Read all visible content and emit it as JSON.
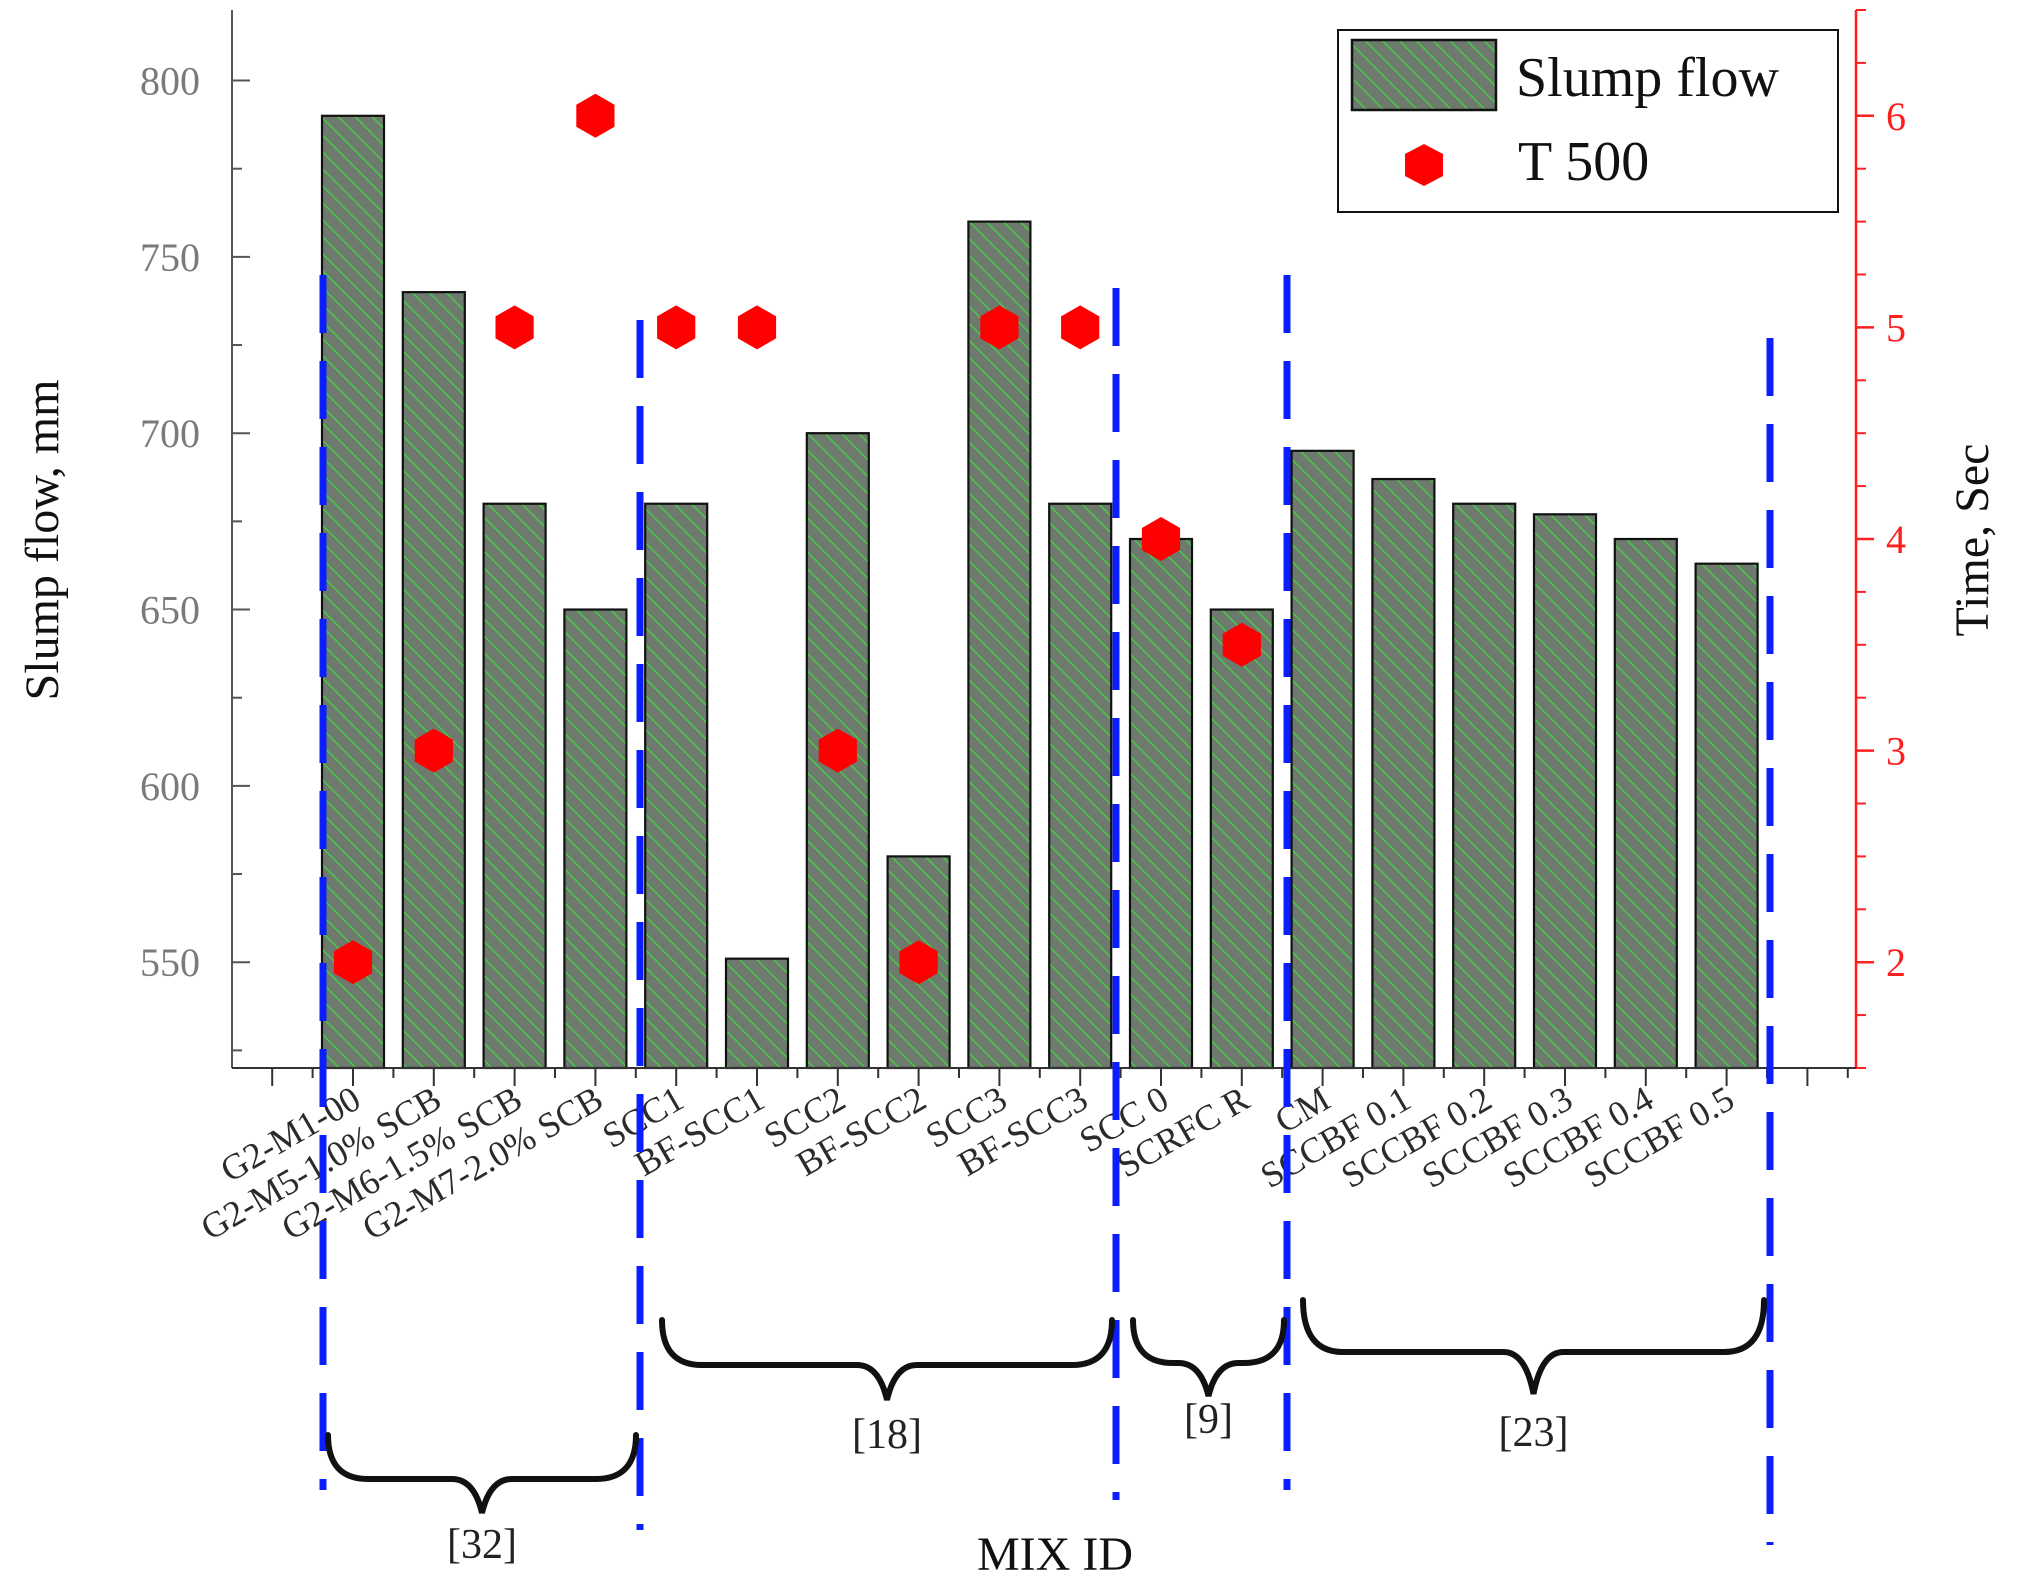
{
  "chart_data": {
    "type": "bar",
    "categories": [
      "G2-M1-00",
      "G2-M5-1.0% SCB",
      "G2-M6-1.5% SCB",
      "G2-M7-2.0% SCB",
      "SCC1",
      "BF-SCC1",
      "SCC2",
      "BF-SCC2",
      "SCC3",
      "BF-SCC3",
      "SCC 0",
      "SCRFC R",
      "CM",
      "SCCBF 0.1",
      "SCCBF 0.2",
      "SCCBF 0.3",
      "SCCBF 0.4",
      "SCCBF 0.5"
    ],
    "series": [
      {
        "name": "Slump flow",
        "kind": "bar",
        "axis": "left",
        "values": [
          790,
          740,
          680,
          650,
          680,
          551,
          700,
          580,
          760,
          680,
          670,
          650,
          695,
          687,
          680,
          677,
          670,
          663
        ]
      },
      {
        "name": "T 500",
        "kind": "scatter",
        "axis": "right",
        "values": [
          2,
          3,
          5,
          6,
          5,
          5,
          3,
          2,
          5,
          5,
          4,
          3.5,
          null,
          null,
          null,
          null,
          null,
          null
        ]
      }
    ],
    "xlabel": "MIX ID",
    "ylabel": "Slump flow, mm",
    "ylabel_right": "Time, Sec",
    "ylim": [
      520,
      820
    ],
    "ylim_right": [
      1.5,
      6.5
    ],
    "yticks": [
      "550",
      "600",
      "650",
      "700",
      "750",
      "800"
    ],
    "yticks_right": [
      "2",
      "3",
      "4",
      "5",
      "6"
    ],
    "groups": [
      {
        "label": "[32]",
        "from": 0,
        "to": 3
      },
      {
        "label": "[18]",
        "from": 4,
        "to": 9
      },
      {
        "label": "[9]",
        "from": 10,
        "to": 11
      },
      {
        "label": "[23]",
        "from": 12,
        "to": 17
      }
    ],
    "legend": {
      "position": "top-right",
      "entries": [
        "Slump flow",
        "T 500"
      ]
    },
    "grid": false
  },
  "colors": {
    "bar_fill": "#6e7a6e",
    "bar_hatch": "#3fdc3f",
    "bar_stroke": "#111111",
    "marker": "#ff0000",
    "right_axis": "#ff1f1f",
    "left_ticks": "#7a7a7a",
    "divider": "#0a1eff"
  }
}
